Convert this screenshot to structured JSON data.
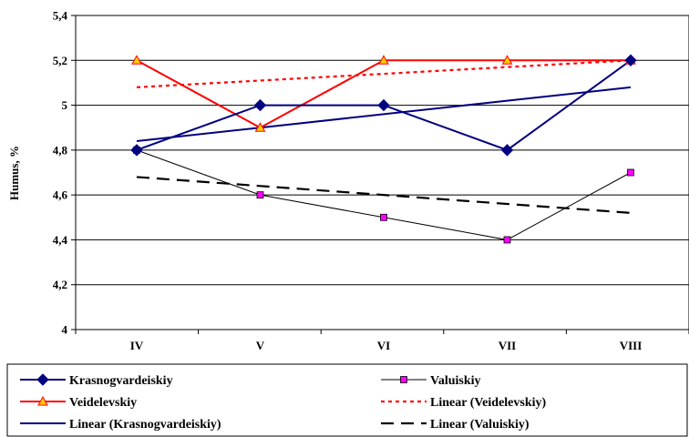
{
  "chart_data": {
    "type": "line",
    "categories": [
      "IV",
      "V",
      "VI",
      "VII",
      "VIII"
    ],
    "ylabel": "Humus, %",
    "xlabel": "",
    "ylim": [
      4,
      5.4
    ],
    "yticks": [
      4,
      4.2,
      4.4,
      4.6,
      4.8,
      5,
      5.2,
      5.4
    ],
    "ytick_labels": [
      "4",
      "4,2",
      "4,4",
      "4,6",
      "4,8",
      "5",
      "5,2",
      "5,4"
    ],
    "grid": "horizontal",
    "legend_position": "bottom",
    "series": [
      {
        "name": "Krasnogvardeiskiy",
        "values": [
          4.8,
          5.0,
          5.0,
          4.8,
          5.2
        ],
        "color": "#000080",
        "marker": "diamond",
        "line": "solid"
      },
      {
        "name": "Valuiskiy",
        "values": [
          4.8,
          4.6,
          4.5,
          4.4,
          4.7
        ],
        "color": "#000000",
        "marker_color": "#ff00ff",
        "marker": "square",
        "line": "thin"
      },
      {
        "name": "Veidelevskiy",
        "values": [
          5.2,
          4.9,
          5.2,
          5.2,
          5.2
        ],
        "color": "#ff0000",
        "marker_color": "#ffcc00",
        "marker": "triangle",
        "line": "solid"
      },
      {
        "name": "Linear (Veidelevskiy)",
        "values": [
          5.08,
          5.11,
          5.14,
          5.17,
          5.2
        ],
        "color": "#ff0000",
        "marker": "none",
        "line": "dotted"
      },
      {
        "name": "Linear (Krasnogvardeiskiy)",
        "values": [
          4.84,
          4.9,
          4.96,
          5.02,
          5.08
        ],
        "color": "#000080",
        "marker": "none",
        "line": "solid"
      },
      {
        "name": "Linear (Valuiskiy)",
        "values": [
          4.68,
          4.64,
          4.6,
          4.56,
          4.52
        ],
        "color": "#000000",
        "marker": "none",
        "line": "dashed"
      }
    ]
  }
}
